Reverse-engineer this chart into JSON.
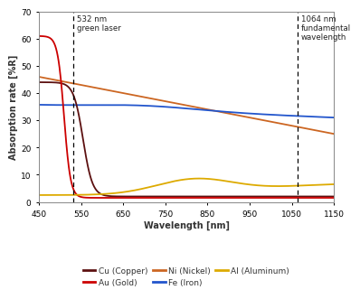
{
  "xlim": [
    450,
    1150
  ],
  "ylim": [
    0,
    70
  ],
  "xticks": [
    450,
    550,
    650,
    750,
    850,
    950,
    1050,
    1150
  ],
  "yticks": [
    0,
    10,
    20,
    30,
    40,
    50,
    60,
    70
  ],
  "xlabel": "Wavelength [nm]",
  "ylabel": "Absorption rate [%R]",
  "vline1": 532,
  "vline2": 1064,
  "vline1_label": "532 nm\ngreen laser",
  "vline2_label": "1064 nm\nfundamental\nwavelength",
  "background_color": "#ffffff",
  "plot_bg": "#ffffff",
  "colors": {
    "Cu": "#5c1010",
    "Au": "#cc0000",
    "Ni": "#cc6622",
    "Fe": "#2255cc",
    "Al": "#ddaa00"
  },
  "legend_labels": [
    "Cu (Copper)",
    "Au (Gold)",
    "Ni (Nickel)",
    "Fe (Iron)",
    "Al (Aluminum)"
  ]
}
